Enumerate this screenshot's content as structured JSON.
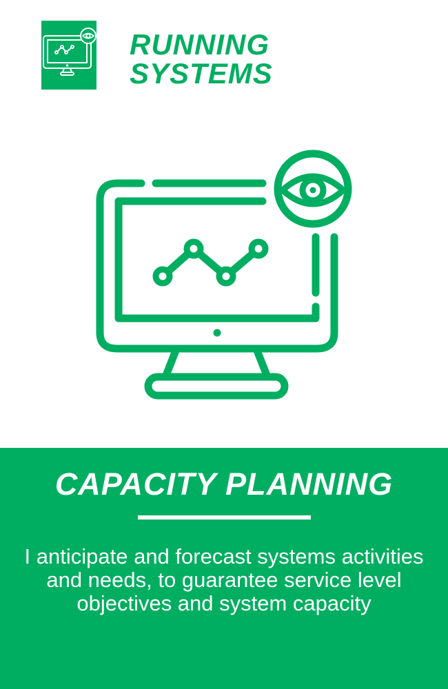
{
  "brand": {
    "title_line1": "RUNNING",
    "title_line2": "SYSTEMS",
    "icon": "monitor-chart-eye-icon",
    "color": "#00ae61"
  },
  "hero": {
    "icon": "monitor-chart-eye-icon"
  },
  "panel": {
    "title": "CAPACITY PLANNING",
    "description": "I anticipate and forecast systems activities and needs, to guarantee service level objectives and system capacity",
    "background": "#00ae61",
    "text_color": "#ffffff"
  }
}
